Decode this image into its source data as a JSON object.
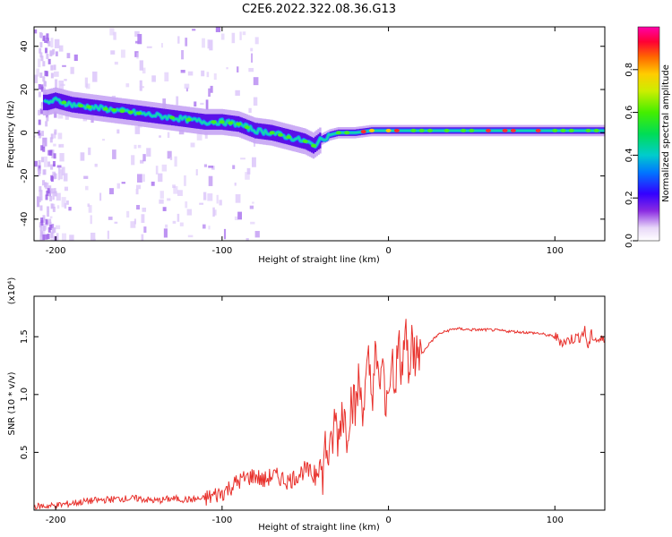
{
  "figure": {
    "title": "C2E6.2022.322.08.36.G13"
  },
  "chart_data": [
    {
      "type": "heatmap",
      "title": "C2E6.2022.322.08.36.G13",
      "xlabel": "Height of straight line (km)",
      "ylabel": "Frequency (Hz)",
      "xlim": [
        -213,
        130
      ],
      "ylim": [
        -50,
        49
      ],
      "xticks": [
        -200,
        -100,
        0,
        100
      ],
      "yticks": [
        -40,
        -20,
        0,
        20,
        40
      ],
      "colorbar": {
        "label": "Normalized spectral amplitude",
        "range": [
          0,
          1
        ],
        "ticks": [
          0.0,
          0.2,
          0.4,
          0.6,
          0.8
        ]
      },
      "ridge": {
        "x": [
          -205,
          -200,
          -190,
          -180,
          -170,
          -160,
          -150,
          -140,
          -130,
          -120,
          -110,
          -100,
          -90,
          -80,
          -70,
          -60,
          -50,
          -45,
          -40,
          -35,
          -30,
          -20,
          -10,
          0,
          10,
          20,
          40,
          60,
          80,
          100,
          128
        ],
        "y": [
          14,
          15,
          13,
          12,
          11,
          10,
          9,
          8,
          7,
          6,
          5,
          5,
          4,
          1,
          0,
          -2,
          -4,
          -6,
          -3,
          -1,
          0,
          0,
          1,
          1,
          1,
          1,
          1,
          1,
          1,
          1,
          1
        ]
      },
      "grid": false,
      "legend": "none"
    },
    {
      "type": "line",
      "xlabel": "Height of straight line (km)",
      "ylabel": "SNR (10 * v/v)",
      "y_multiplier_label": "(x10⁴)",
      "xlim": [
        -213,
        130
      ],
      "ylim": [
        0,
        1.85
      ],
      "xticks": [
        -200,
        -100,
        0,
        100
      ],
      "yticks": [
        0.5,
        1.0,
        1.5
      ],
      "ytick_labels": [
        "0.5",
        "1.0",
        "1.5"
      ],
      "series": [
        {
          "color": "#e8312c",
          "x": [
            -213,
            -200,
            -190,
            -180,
            -170,
            -160,
            -150,
            -140,
            -130,
            -120,
            -110,
            -100,
            -95,
            -90,
            -85,
            -80,
            -75,
            -70,
            -65,
            -60,
            -55,
            -50,
            -45,
            -42,
            -40,
            -38,
            -35,
            -32,
            -30,
            -28,
            -25,
            -22,
            -20,
            -18,
            -15,
            -12,
            -10,
            -8,
            -6,
            -4,
            -2,
            0,
            2,
            4,
            6,
            8,
            10,
            12,
            14,
            16,
            18,
            20,
            25,
            30,
            35,
            40,
            50,
            60,
            70,
            80,
            90,
            100,
            105,
            110,
            115,
            118,
            120,
            122,
            124,
            126,
            128
          ],
          "y": [
            0.03,
            0.04,
            0.06,
            0.08,
            0.09,
            0.1,
            0.1,
            0.08,
            0.1,
            0.09,
            0.1,
            0.15,
            0.2,
            0.25,
            0.28,
            0.3,
            0.25,
            0.3,
            0.28,
            0.25,
            0.3,
            0.35,
            0.3,
            0.5,
            0.25,
            0.55,
            0.45,
            0.8,
            0.6,
            0.9,
            0.7,
            1.0,
            0.85,
            1.1,
            0.9,
            1.25,
            1.0,
            1.3,
            1.1,
            1.2,
            1.0,
            1.05,
            1.35,
            1.1,
            1.4,
            1.2,
            1.5,
            1.3,
            1.45,
            1.3,
            1.4,
            1.35,
            1.45,
            1.52,
            1.55,
            1.57,
            1.56,
            1.56,
            1.55,
            1.54,
            1.53,
            1.5,
            1.45,
            1.48,
            1.5,
            1.55,
            1.4,
            1.52,
            1.48,
            1.47,
            1.47
          ]
        }
      ],
      "grid": false,
      "legend": "none"
    }
  ]
}
